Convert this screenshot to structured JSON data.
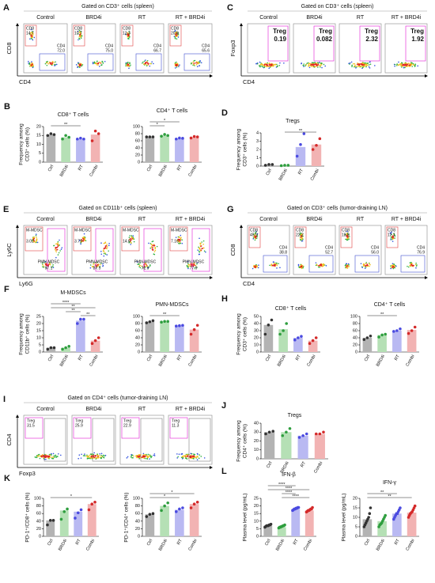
{
  "colors": {
    "bars": [
      "#b3b3b3",
      "#b5e0b5",
      "#b9b9f2",
      "#f2b3b3"
    ],
    "points": [
      "#333333",
      "#2e9e3e",
      "#4a4ae0",
      "#d42a2a"
    ],
    "gate": "#e01ad6",
    "significance": "#222222"
  },
  "flow_panels": [
    {
      "letter": "A",
      "title": "Gated on CD3⁺ cells (spleen)",
      "conditions": [
        "Control",
        "BRD4i",
        "RT",
        "RT + BRD4i"
      ],
      "ylabel": "CD8",
      "xlabel": "CD4",
      "gates": [
        [
          {
            "label": "CD8",
            "value": "14.7"
          },
          {
            "label": "CD4",
            "value": "72.0"
          }
        ],
        [
          {
            "label": "CD8",
            "value": "10.7"
          },
          {
            "label": "CD4",
            "value": "75.0"
          }
        ],
        [
          {
            "label": "CD8",
            "value": "13.3"
          },
          {
            "label": "CD4",
            "value": "66.7"
          }
        ],
        [
          {
            "label": "CD8",
            "value": "20.8"
          },
          {
            "label": "CD4",
            "value": "65.6"
          }
        ]
      ]
    },
    {
      "letter": "C",
      "title": "Gated on CD3⁺ cells (spleen)",
      "conditions": [
        "Control",
        "BRD4i",
        "RT",
        "RT + BRD4i"
      ],
      "ylabel": "Foxp3",
      "xlabel": "CD4",
      "gates": [
        [
          {
            "label": "Treg",
            "value": "0.19"
          }
        ],
        [
          {
            "label": "Treg",
            "value": "0.082"
          }
        ],
        [
          {
            "label": "Treg",
            "value": "2.32"
          }
        ],
        [
          {
            "label": "Treg",
            "value": "1.92"
          }
        ]
      ]
    },
    {
      "letter": "E",
      "title": "Gated on CD11b⁺ cells (spleen)",
      "conditions": [
        "Control",
        "BRD4i",
        "RT",
        "RT + BRD4i"
      ],
      "ylabel": "Ly6C",
      "xlabel": "Ly6G",
      "gates": [
        [
          {
            "label": "M-MDSC",
            "value": "3.02"
          },
          {
            "label": "PMN-MDSC",
            "value": "97.1"
          }
        ],
        [
          {
            "label": "M-MDSC",
            "value": "3.79"
          },
          {
            "label": "PMN-MDSC",
            "value": "87.5"
          }
        ],
        [
          {
            "label": "M-MDSC",
            "value": "14.6"
          },
          {
            "label": "PMN-MDSC",
            "value": "71.9"
          }
        ],
        [
          {
            "label": "M-MDSC",
            "value": "7.16"
          },
          {
            "label": "PMN-MDSC",
            "value": "77.9"
          }
        ]
      ]
    },
    {
      "letter": "G",
      "title": "Gated on CD3⁺ cells (tumor-draining LN)",
      "conditions": [
        "Control",
        "BRD4i",
        "RT",
        "RT + BRD4i"
      ],
      "ylabel": "CD8",
      "xlabel": "CD4",
      "gates": [
        [
          {
            "label": "CD8",
            "value": "45.9"
          },
          {
            "label": "CD4",
            "value": "38.8"
          }
        ],
        [
          {
            "label": "CD8",
            "value": "22.2"
          },
          {
            "label": "CD4",
            "value": "52.7"
          }
        ],
        [
          {
            "label": "CD8",
            "value": "18.9"
          },
          {
            "label": "CD4",
            "value": "56.0"
          }
        ],
        [
          {
            "label": "CD8",
            "value": "12.1"
          },
          {
            "label": "CD4",
            "value": "76.9"
          }
        ]
      ]
    },
    {
      "letter": "I",
      "title": "Gated on CD4⁺ cells (tumor-draining LN)",
      "conditions": [
        "Control",
        "BRD4i",
        "RT",
        "RT + BRD4i"
      ],
      "ylabel": "CD4",
      "xlabel": "Foxp3",
      "gates": [
        [
          {
            "label": "Treg",
            "value": "31.5"
          }
        ],
        [
          {
            "label": "Treg",
            "value": "25.9"
          }
        ],
        [
          {
            "label": "Treg",
            "value": "22.9"
          }
        ],
        [
          {
            "label": "Treg",
            "value": "11.3"
          }
        ]
      ]
    }
  ],
  "chart_data": [
    {
      "type": "bar",
      "letter": "B",
      "title": "CD8⁺ T cells",
      "ylabel": [
        "Frequency among",
        "CD3⁺ cells (%)"
      ],
      "categories": [
        "Ctrl",
        "BRD4i",
        "RT",
        "Combi"
      ],
      "values": [
        15.5,
        14,
        13,
        15.5
      ],
      "points": [
        [
          15,
          16,
          15.5
        ],
        [
          13,
          15,
          14
        ],
        [
          13,
          13.5,
          13
        ],
        [
          12,
          17.5,
          16
        ]
      ],
      "ylim": [
        0,
        20
      ],
      "yticks": [
        0,
        5,
        10,
        15,
        20
      ],
      "significance": [
        {
          "label": "**",
          "between": [
            "Ctrl",
            "RT"
          ]
        }
      ]
    },
    {
      "type": "bar",
      "title": "CD4⁺ T cells",
      "ylabel": [],
      "categories": [
        "Ctrl",
        "BRD4i",
        "RT",
        "Combi"
      ],
      "values": [
        71,
        75,
        67,
        70
      ],
      "points": [
        [
          71,
          71,
          71
        ],
        [
          73,
          78,
          75
        ],
        [
          65,
          68,
          67
        ],
        [
          68,
          72,
          71
        ]
      ],
      "ylim": [
        0,
        100
      ],
      "yticks": [
        0,
        20,
        40,
        60,
        80,
        100
      ],
      "significance": [
        {
          "label": "*",
          "between": [
            "Ctrl",
            "BRD4i"
          ]
        },
        {
          "label": "*",
          "between": [
            "Ctrl",
            "RT"
          ]
        }
      ]
    },
    {
      "type": "bar",
      "letter": "D",
      "title": "Tregs",
      "ylabel": [
        "Frequency among",
        "CD3⁺ cells (%)"
      ],
      "categories": [
        "Ctrl",
        "BRD4i",
        "RT",
        "Combi"
      ],
      "values": [
        0.2,
        0.1,
        2.3,
        2.6
      ],
      "points": [
        [
          0.1,
          0.2,
          0.2
        ],
        [
          0.05,
          0.1,
          0.1
        ],
        [
          1.2,
          2.6,
          3.9
        ],
        [
          2,
          2.5,
          3.3
        ]
      ],
      "ylim": [
        0,
        4
      ],
      "yticks": [
        0,
        1,
        2,
        3,
        4
      ],
      "significance": [
        {
          "label": "**",
          "between": [
            "BRD4i",
            "Combi"
          ]
        }
      ]
    },
    {
      "type": "bar",
      "letter": "F",
      "title": "M-MDSCs",
      "ylabel": [
        "Frequency among",
        "CD11b⁺ cells (%)"
      ],
      "categories": [
        "Ctrl",
        "BRD4i",
        "RT",
        "Combi"
      ],
      "values": [
        3,
        3,
        22,
        8
      ],
      "points": [
        [
          2,
          3,
          3
        ],
        [
          2,
          3,
          4
        ],
        [
          20,
          23,
          23
        ],
        [
          6,
          8,
          10
        ]
      ],
      "ylim": [
        0,
        25
      ],
      "yticks": [
        0,
        5,
        10,
        15,
        20,
        25
      ],
      "significance": [
        {
          "label": "**",
          "between": [
            "RT",
            "Combi"
          ]
        },
        {
          "label": "**",
          "between": [
            "BRD4i",
            "RT"
          ]
        },
        {
          "label": "**",
          "between": [
            "Ctrl",
            "Combi"
          ]
        },
        {
          "label": "****",
          "between": [
            "Ctrl",
            "RT"
          ]
        }
      ]
    },
    {
      "type": "bar",
      "title": "PMN-MDSCs",
      "ylabel": [],
      "categories": [
        "Ctrl",
        "BRD4i",
        "RT",
        "Combi"
      ],
      "values": [
        85,
        85,
        74,
        63
      ],
      "points": [
        [
          82,
          85,
          88
        ],
        [
          84,
          86,
          86
        ],
        [
          73,
          74,
          75
        ],
        [
          50,
          63,
          75
        ]
      ],
      "ylim": [
        0,
        100
      ],
      "yticks": [
        0,
        20,
        40,
        60,
        80,
        100
      ],
      "significance": [
        {
          "label": "**",
          "between": [
            "Ctrl",
            "RT"
          ]
        }
      ]
    },
    {
      "type": "bar",
      "letter": "H",
      "title": "CD8⁺ T cells",
      "ylabel": [
        "Frequency among",
        "CD3⁺ cells (%)"
      ],
      "categories": [
        "Ctrl",
        "BRD4i",
        "RT",
        "Combi"
      ],
      "values": [
        38,
        32,
        20,
        16
      ],
      "points": [
        [
          25,
          38,
          45
        ],
        [
          25,
          30,
          40
        ],
        [
          17,
          20,
          22
        ],
        [
          12,
          16,
          20
        ]
      ],
      "ylim": [
        0,
        50
      ],
      "yticks": [
        0,
        10,
        20,
        30,
        40,
        50
      ],
      "significance": []
    },
    {
      "type": "bar",
      "title": "CD4⁺ T cells",
      "ylabel": [],
      "categories": [
        "Ctrl",
        "BRD4i",
        "RT",
        "Combi"
      ],
      "values": [
        40,
        48,
        60,
        62
      ],
      "points": [
        [
          35,
          40,
          45
        ],
        [
          42,
          48,
          50
        ],
        [
          58,
          60,
          65
        ],
        [
          52,
          60,
          70
        ]
      ],
      "ylim": [
        0,
        100
      ],
      "yticks": [
        0,
        20,
        40,
        60,
        80,
        100
      ],
      "significance": [
        {
          "label": "**",
          "between": [
            "Ctrl",
            "RT"
          ]
        }
      ]
    },
    {
      "type": "bar",
      "letter": "J",
      "title": "Tregs",
      "ylabel": [
        "Frequency among",
        "CD4⁺ cells (%)"
      ],
      "categories": [
        "Ctrl",
        "BRD4i",
        "RT",
        "Combi"
      ],
      "values": [
        30,
        30,
        26,
        28
      ],
      "points": [
        [
          28,
          30,
          31
        ],
        [
          26,
          30,
          34
        ],
        [
          24,
          26,
          28
        ],
        [
          28,
          28,
          30
        ]
      ],
      "ylim": [
        0,
        40
      ],
      "yticks": [
        0,
        10,
        20,
        30,
        40
      ],
      "significance": []
    },
    {
      "type": "bar",
      "letter": "K",
      "title": "",
      "ylabel": [
        "PD-1⁺/CD8⁺ cells (%)"
      ],
      "categories": [
        "Ctrl",
        "BRD4i",
        "RT",
        "Combi"
      ],
      "values": [
        42,
        68,
        65,
        85
      ],
      "points": [
        [
          30,
          42,
          42
        ],
        [
          45,
          65,
          72
        ],
        [
          48,
          62,
          70
        ],
        [
          70,
          85,
          90
        ]
      ],
      "ylim": [
        0,
        100
      ],
      "yticks": [
        0,
        20,
        40,
        60,
        80,
        100
      ],
      "significance": [
        {
          "label": "*",
          "between": [
            "Ctrl",
            "Combi"
          ]
        }
      ]
    },
    {
      "type": "bar",
      "title": "",
      "ylabel": [
        "PD-1⁺/CD4⁺ cells (%)"
      ],
      "categories": [
        "Ctrl",
        "BRD4i",
        "RT",
        "Combi"
      ],
      "values": [
        58,
        80,
        70,
        85
      ],
      "points": [
        [
          52,
          58,
          60
        ],
        [
          68,
          80,
          88
        ],
        [
          65,
          72,
          75
        ],
        [
          75,
          85,
          90
        ]
      ],
      "ylim": [
        0,
        100
      ],
      "yticks": [
        0,
        20,
        40,
        60,
        80,
        100
      ],
      "significance": [
        {
          "label": "*",
          "between": [
            "Ctrl",
            "RT"
          ]
        },
        {
          "label": "*",
          "between": [
            "Ctrl",
            "Combi"
          ]
        }
      ]
    },
    {
      "type": "bar",
      "letter": "L",
      "title": "IFN-β",
      "ylabel": [
        "Plasma level (pg/mL)"
      ],
      "categories": [
        "Ctrl",
        "BRD4i",
        "RT",
        "Combi"
      ],
      "values": [
        7,
        6,
        18,
        17
      ],
      "points": [
        [
          6,
          6.5,
          7,
          7,
          7,
          7.5,
          7.5,
          8
        ],
        [
          5.5,
          6,
          6,
          6.5,
          6.5,
          7,
          7,
          7.5
        ],
        [
          17,
          17.5,
          18,
          18,
          18.5,
          18.5,
          19,
          19
        ],
        [
          16,
          16.5,
          17,
          17,
          17.5,
          18,
          18,
          19
        ]
      ],
      "ylim": [
        0,
        25
      ],
      "yticks": [
        0,
        5,
        10,
        15,
        20,
        25
      ],
      "significance": [
        {
          "label": "****",
          "between": [
            "BRD4i",
            "Combi"
          ]
        },
        {
          "label": "****",
          "between": [
            "BRD4i",
            "RT"
          ]
        },
        {
          "label": "****",
          "between": [
            "Ctrl",
            "Combi"
          ]
        },
        {
          "label": "****",
          "between": [
            "Ctrl",
            "RT"
          ]
        }
      ]
    },
    {
      "type": "bar",
      "title": "IFN-γ",
      "ylabel": [
        "Plasma level (pg/mL)"
      ],
      "categories": [
        "Ctrl",
        "BRD4i",
        "RT",
        "Combi"
      ],
      "values": [
        9,
        8,
        12,
        12.5
      ],
      "points": [
        [
          5,
          6,
          7,
          8,
          9,
          10,
          12,
          15
        ],
        [
          5,
          6,
          6.5,
          7,
          8,
          9,
          10,
          11
        ],
        [
          9,
          10,
          11,
          12,
          12,
          13,
          14,
          15
        ],
        [
          10,
          11,
          12,
          12.5,
          13,
          14,
          15,
          16
        ]
      ],
      "ylim": [
        0,
        20
      ],
      "yticks": [
        0,
        5,
        10,
        15,
        20
      ],
      "significance": [
        {
          "label": "**",
          "between": [
            "Ctrl",
            "Combi"
          ]
        },
        {
          "label": "**",
          "between": [
            "Ctrl",
            "RT"
          ]
        }
      ]
    }
  ]
}
